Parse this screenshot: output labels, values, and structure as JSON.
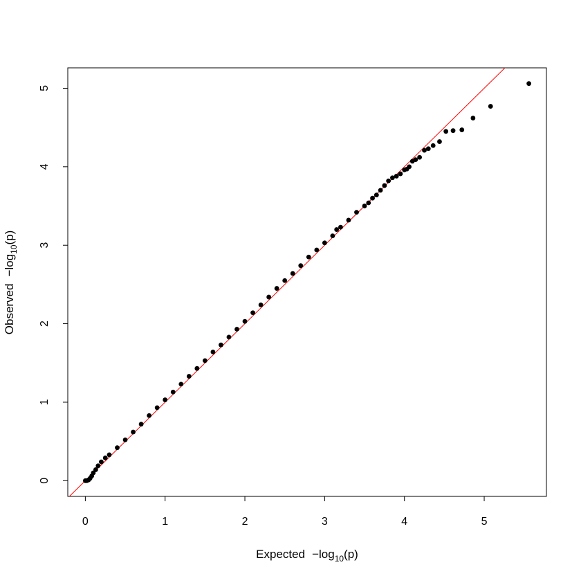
{
  "chart_data": {
    "type": "scatter",
    "title": "",
    "xlabel": {
      "prefix": "Expected",
      "minus": "−",
      "fn": "log",
      "sub": "10",
      "var": "(p)"
    },
    "ylabel": {
      "prefix": "Observed",
      "minus": "−",
      "fn": "log",
      "sub": "10",
      "var": "(p)"
    },
    "xlim": [
      -0.22,
      5.78
    ],
    "ylim": [
      -0.2,
      5.26
    ],
    "xticks": [
      0,
      1,
      2,
      3,
      4,
      5
    ],
    "yticks": [
      0,
      1,
      2,
      3,
      4,
      5
    ],
    "xtick_labels": [
      "0",
      "1",
      "2",
      "3",
      "4",
      "5"
    ],
    "ytick_labels": [
      "0",
      "1",
      "2",
      "3",
      "4",
      "5"
    ],
    "reference_line": {
      "slope": 1,
      "intercept": 0,
      "color": "#ff0000"
    },
    "point_color": "#000000",
    "series": [
      {
        "values": [
          [
            0.0,
            0.0
          ],
          [
            0.02,
            0.0
          ],
          [
            0.04,
            0.01
          ],
          [
            0.06,
            0.03
          ],
          [
            0.08,
            0.06
          ],
          [
            0.1,
            0.1
          ],
          [
            0.13,
            0.14
          ],
          [
            0.16,
            0.19
          ],
          [
            0.2,
            0.24
          ],
          [
            0.25,
            0.29
          ],
          [
            0.3,
            0.33
          ],
          [
            0.4,
            0.42
          ],
          [
            0.5,
            0.52
          ],
          [
            0.6,
            0.62
          ],
          [
            0.7,
            0.72
          ],
          [
            0.8,
            0.83
          ],
          [
            0.9,
            0.93
          ],
          [
            1.0,
            1.03
          ],
          [
            1.1,
            1.13
          ],
          [
            1.2,
            1.23
          ],
          [
            1.3,
            1.33
          ],
          [
            1.4,
            1.43
          ],
          [
            1.5,
            1.53
          ],
          [
            1.6,
            1.64
          ],
          [
            1.7,
            1.73
          ],
          [
            1.8,
            1.83
          ],
          [
            1.9,
            1.93
          ],
          [
            2.0,
            2.03
          ],
          [
            2.1,
            2.14
          ],
          [
            2.2,
            2.24
          ],
          [
            2.3,
            2.34
          ],
          [
            2.4,
            2.45
          ],
          [
            2.5,
            2.55
          ],
          [
            2.6,
            2.64
          ],
          [
            2.7,
            2.74
          ],
          [
            2.8,
            2.85
          ],
          [
            2.9,
            2.94
          ],
          [
            3.0,
            3.03
          ],
          [
            3.1,
            3.12
          ],
          [
            3.15,
            3.2
          ],
          [
            3.2,
            3.23
          ],
          [
            3.3,
            3.32
          ],
          [
            3.4,
            3.42
          ],
          [
            3.5,
            3.5
          ],
          [
            3.55,
            3.54
          ],
          [
            3.6,
            3.6
          ],
          [
            3.65,
            3.64
          ],
          [
            3.7,
            3.7
          ],
          [
            3.75,
            3.76
          ],
          [
            3.8,
            3.82
          ],
          [
            3.85,
            3.86
          ],
          [
            3.9,
            3.88
          ],
          [
            3.95,
            3.91
          ],
          [
            4.0,
            3.96
          ],
          [
            4.03,
            3.97
          ],
          [
            4.06,
            4.0
          ],
          [
            4.1,
            4.07
          ],
          [
            4.14,
            4.09
          ],
          [
            4.19,
            4.12
          ],
          [
            4.25,
            4.21
          ],
          [
            4.3,
            4.23
          ],
          [
            4.36,
            4.27
          ],
          [
            4.44,
            4.32
          ],
          [
            4.52,
            4.45
          ],
          [
            4.61,
            4.46
          ],
          [
            4.72,
            4.47
          ],
          [
            4.86,
            4.62
          ],
          [
            5.08,
            4.77
          ],
          [
            5.56,
            5.06
          ]
        ]
      }
    ]
  }
}
